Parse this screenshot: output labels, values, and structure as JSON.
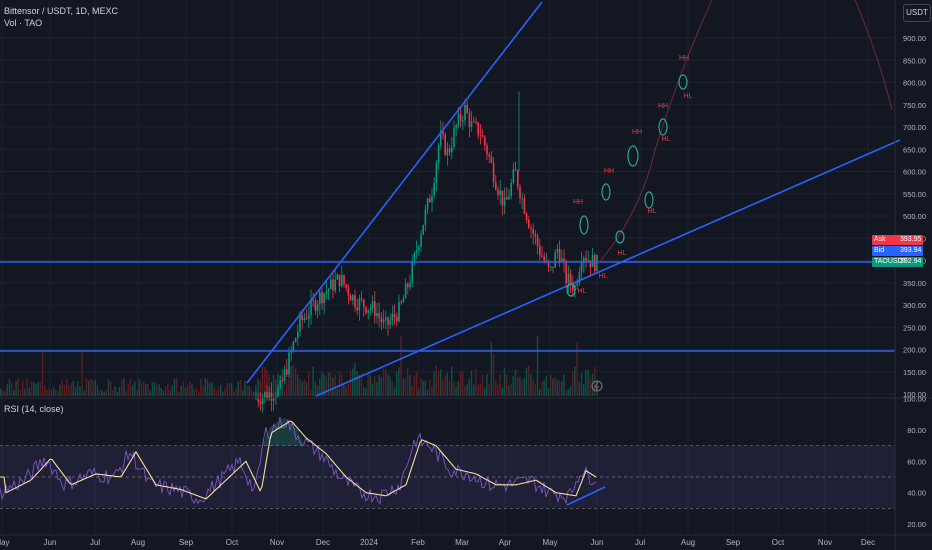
{
  "header": {
    "symbol_line": "Bittensor / USDT, 1D, MEXC",
    "volume_line": "Vol · TAO"
  },
  "currency_button": "USDT",
  "price_axis": {
    "ticks": [
      "900.00",
      "850.00",
      "800.00",
      "750.00",
      "700.00",
      "650.00",
      "600.00",
      "550.00",
      "500.00",
      "450.00",
      "400.00",
      "350.00",
      "300.00",
      "250.00",
      "200.00",
      "150.00",
      "100.00"
    ],
    "values": [
      900,
      850,
      800,
      750,
      700,
      650,
      600,
      550,
      500,
      450,
      400,
      350,
      300,
      250,
      200,
      150,
      100
    ]
  },
  "price_tags": {
    "ask": {
      "label": "Ask",
      "value": "393.95",
      "color": "#f23645"
    },
    "bid": {
      "label": "Bid",
      "value": "393.94",
      "color": "#2962ff"
    },
    "last": {
      "label": "TAOUSDT",
      "value": "392.94",
      "color": "#089981"
    }
  },
  "rsi": {
    "title": "RSI (14, close)",
    "ticks": [
      "100.00",
      "80.00",
      "60.00",
      "40.00",
      "20.00"
    ],
    "values": [
      100,
      80,
      60,
      40,
      20
    ]
  },
  "time_axis": {
    "labels": [
      "May",
      "Jun",
      "Jul",
      "Aug",
      "Sep",
      "Oct",
      "Nov",
      "Dec",
      "2024",
      "Feb",
      "Mar",
      "Apr",
      "May",
      "Jun",
      "Jul",
      "Aug",
      "Sep",
      "Oct",
      "Nov",
      "Dec"
    ]
  },
  "annotations": {
    "hh": [
      "HH",
      "HH",
      "HH",
      "HH",
      "HH"
    ],
    "hl": [
      "HL",
      "HL",
      "HL",
      "HL",
      "HL",
      "HL"
    ]
  },
  "colors": {
    "background": "#131722",
    "up": "#089981",
    "down": "#f23645",
    "trendline": "#2962ff",
    "rsi_line": "#7e57c2",
    "rsi_ma": "#f1e3a0"
  },
  "icons": {
    "alert": "lightning-icon"
  }
}
